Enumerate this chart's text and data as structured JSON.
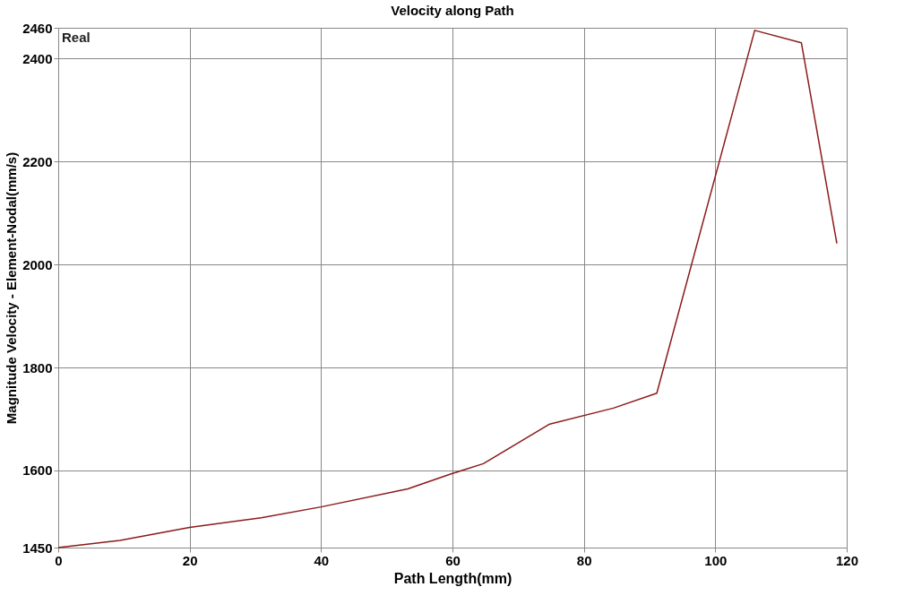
{
  "chart_data": {
    "type": "line",
    "title": "Velocity along Path",
    "xlabel": "Path Length(mm)",
    "ylabel": "Magnitude Velocity - Element-Nodal(mm/s)",
    "annotations": [
      "Real"
    ],
    "x": [
      0,
      9.4,
      20,
      30.9,
      40,
      53.2,
      60,
      64.7,
      74.8,
      84.5,
      91.1,
      106,
      113.1,
      118.5
    ],
    "series": [
      {
        "color": "#8b1a1a",
        "values": [
          1450,
          1464,
          1489,
          1508,
          1529,
          1564,
          1594,
          1613,
          1690,
          1721,
          1750,
          2455,
          2431,
          2041
        ]
      }
    ],
    "xlim": [
      0,
      120
    ],
    "xticks": [
      0,
      20,
      40,
      60,
      80,
      100,
      120
    ],
    "ylim": [
      1450,
      2460
    ],
    "yticks": [
      1450,
      1600,
      1800,
      2000,
      2200,
      2400,
      2460
    ],
    "grid": true,
    "legend": false,
    "marker": "none",
    "line_style": "solid"
  }
}
